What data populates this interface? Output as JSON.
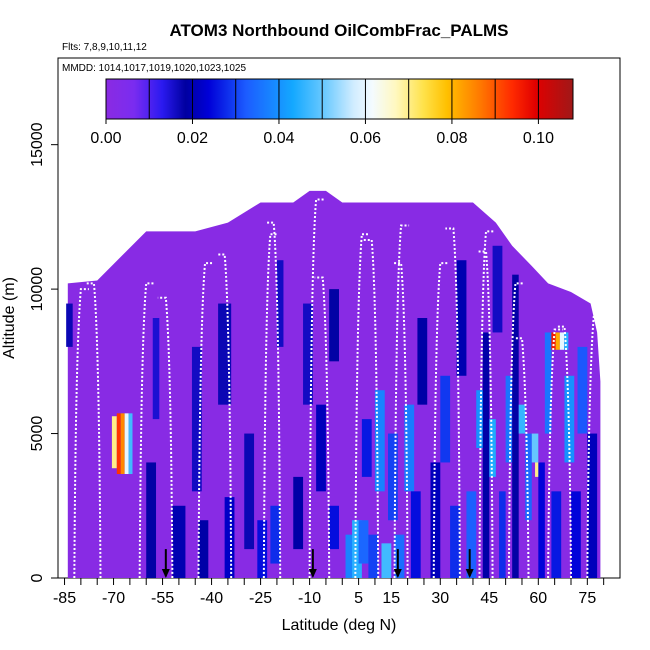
{
  "chart_data": {
    "type": "heatmap",
    "title": "ATOM3 Northbound OilCombFrac_PALMS",
    "flights_text": "Flts: 7,8,9,10,11,12",
    "dates_text": "MMDD: 1014,1017,1019,1020,1023,1025",
    "xlabel": "Latitude (deg N)",
    "ylabel": "Altitude (m)",
    "xlim": [
      -87,
      85
    ],
    "ylim": [
      0,
      18000
    ],
    "x_ticks": [
      -85,
      -70,
      -55,
      -40,
      -25,
      -10,
      5,
      15,
      30,
      45,
      60,
      75
    ],
    "x_tick_labels": [
      "-85",
      "-70",
      "-55",
      "-40",
      "-25",
      "-10",
      "5",
      "15",
      "30",
      "45",
      "60",
      "75"
    ],
    "x_minor_ticks": [
      -80,
      -75,
      -65,
      -60,
      -50,
      -45,
      -35,
      -30,
      -20,
      -15,
      -5,
      0,
      10,
      20,
      25,
      35,
      40,
      50,
      55,
      65,
      70,
      80
    ],
    "y_ticks": [
      0,
      5000,
      10000,
      15000
    ],
    "y_tick_labels": [
      "0",
      "5000",
      "10000",
      "15000"
    ],
    "colorbar": {
      "min": 0,
      "max": 0.108,
      "ticks": [
        0.0,
        0.02,
        0.04,
        0.06,
        0.08,
        0.1
      ],
      "tick_labels": [
        "0.00",
        "0.02",
        "0.04",
        "0.06",
        "0.08",
        "0.10"
      ],
      "divisions": [
        0.01,
        0.02,
        0.03,
        0.04,
        0.05,
        0.06,
        0.07,
        0.08,
        0.09,
        0.1
      ],
      "color_stops": [
        [
          "0.0",
          "#8a2be2"
        ],
        [
          "0.06",
          "#7a2cf0"
        ],
        [
          "0.12",
          "#2b1af0"
        ],
        [
          "0.17",
          "#0000a0"
        ],
        [
          "0.22",
          "#0000d8"
        ],
        [
          "0.30",
          "#1c5cff"
        ],
        [
          "0.40",
          "#14a8ff"
        ],
        [
          "0.47",
          "#6ecbff"
        ],
        [
          "0.53",
          "#d0ecff"
        ],
        [
          "0.57",
          "#f4fbff"
        ],
        [
          "0.62",
          "#fff8c0"
        ],
        [
          "0.68",
          "#ffe24a"
        ],
        [
          "0.73",
          "#ffc000"
        ],
        [
          "0.80",
          "#ff7a00"
        ],
        [
          "0.87",
          "#ff2a00"
        ],
        [
          "0.92",
          "#e00000"
        ],
        [
          "1.0",
          "#a01818"
        ]
      ]
    },
    "envelope": [
      [
        -84,
        10200
      ],
      [
        -75,
        10300
      ],
      [
        -60,
        12000
      ],
      [
        -45,
        12000
      ],
      [
        -35,
        12300
      ],
      [
        -25,
        13000
      ],
      [
        -15,
        13000
      ],
      [
        -10,
        13400
      ],
      [
        -5,
        13400
      ],
      [
        0,
        13000
      ],
      [
        40,
        13000
      ],
      [
        47,
        12300
      ],
      [
        52,
        11500
      ],
      [
        58,
        10800
      ],
      [
        63,
        10200
      ],
      [
        70,
        9900
      ],
      [
        76,
        9500
      ],
      [
        78,
        8500
      ],
      [
        79,
        6800
      ],
      [
        79,
        0
      ]
    ],
    "background_value": 0.001,
    "cells": [
      {
        "x": -84.5,
        "w": 2,
        "y0": 8000,
        "y1": 9500,
        "v": 0.017
      },
      {
        "x": -70.5,
        "w": 1.5,
        "y0": 3800,
        "y1": 5600,
        "v": 0.07
      },
      {
        "x": -69.0,
        "w": 1.2,
        "y0": 3600,
        "y1": 5700,
        "v": 0.093
      },
      {
        "x": -67.8,
        "w": 1.2,
        "y0": 3600,
        "y1": 5700,
        "v": 0.085
      },
      {
        "x": -66.6,
        "w": 1.2,
        "y0": 3600,
        "y1": 5700,
        "v": 0.06
      },
      {
        "x": -65.4,
        "w": 1.2,
        "y0": 3600,
        "y1": 5700,
        "v": 0.047
      },
      {
        "x": -60,
        "w": 3,
        "y0": 0,
        "y1": 4000,
        "v": 0.018
      },
      {
        "x": -58,
        "w": 2,
        "y0": 5500,
        "y1": 9000,
        "v": 0.015
      },
      {
        "x": -52,
        "w": 4,
        "y0": 0,
        "y1": 2500,
        "v": 0.02
      },
      {
        "x": -46,
        "w": 3,
        "y0": 3000,
        "y1": 8000,
        "v": 0.016
      },
      {
        "x": -44,
        "w": 3,
        "y0": 0,
        "y1": 2000,
        "v": 0.019
      },
      {
        "x": -38,
        "w": 4,
        "y0": 6000,
        "y1": 9500,
        "v": 0.017
      },
      {
        "x": -36,
        "w": 3,
        "y0": 0,
        "y1": 2800,
        "v": 0.022
      },
      {
        "x": -30,
        "w": 3,
        "y0": 1000,
        "y1": 5000,
        "v": 0.017
      },
      {
        "x": -26,
        "w": 3,
        "y0": 0,
        "y1": 2000,
        "v": 0.025
      },
      {
        "x": -22,
        "w": 3,
        "y0": 500,
        "y1": 2500,
        "v": 0.028
      },
      {
        "x": -20,
        "w": 2,
        "y0": 8000,
        "y1": 11000,
        "v": 0.016
      },
      {
        "x": -15,
        "w": 3,
        "y0": 1000,
        "y1": 3500,
        "v": 0.019
      },
      {
        "x": -12,
        "w": 3,
        "y0": 6000,
        "y1": 9500,
        "v": 0.016
      },
      {
        "x": -8,
        "w": 3,
        "y0": 3000,
        "y1": 6000,
        "v": 0.021
      },
      {
        "x": -4,
        "w": 3,
        "y0": 1000,
        "y1": 2500,
        "v": 0.025
      },
      {
        "x": -4,
        "w": 3,
        "y0": 7500,
        "y1": 10000,
        "v": 0.018
      },
      {
        "x": 1,
        "w": 3,
        "y0": 0,
        "y1": 1500,
        "v": 0.038
      },
      {
        "x": 3,
        "w": 3,
        "y0": 0,
        "y1": 2000,
        "v": 0.045
      },
      {
        "x": 5,
        "w": 3,
        "y0": 500,
        "y1": 2000,
        "v": 0.034
      },
      {
        "x": 6,
        "w": 3,
        "y0": 3500,
        "y1": 5500,
        "v": 0.026
      },
      {
        "x": 8,
        "w": 3,
        "y0": 0,
        "y1": 1500,
        "v": 0.03
      },
      {
        "x": 10,
        "w": 3,
        "y0": 3000,
        "y1": 6500,
        "v": 0.038
      },
      {
        "x": 12,
        "w": 3,
        "y0": 0,
        "y1": 1200,
        "v": 0.047
      },
      {
        "x": 14,
        "w": 3,
        "y0": 2000,
        "y1": 5000,
        "v": 0.03
      },
      {
        "x": 16,
        "w": 3,
        "y0": 0,
        "y1": 1500,
        "v": 0.035
      },
      {
        "x": 19,
        "w": 3,
        "y0": 3000,
        "y1": 6000,
        "v": 0.037
      },
      {
        "x": 21,
        "w": 3,
        "y0": 0,
        "y1": 3000,
        "v": 0.025
      },
      {
        "x": 23,
        "w": 3,
        "y0": 6000,
        "y1": 9000,
        "v": 0.019
      },
      {
        "x": 27,
        "w": 3,
        "y0": 0,
        "y1": 4000,
        "v": 0.021
      },
      {
        "x": 30,
        "w": 3,
        "y0": 4000,
        "y1": 7000,
        "v": 0.029
      },
      {
        "x": 33,
        "w": 3,
        "y0": 0,
        "y1": 2500,
        "v": 0.028
      },
      {
        "x": 35,
        "w": 3,
        "y0": 7000,
        "y1": 11000,
        "v": 0.02
      },
      {
        "x": 38,
        "w": 3,
        "y0": 0,
        "y1": 3000,
        "v": 0.033
      },
      {
        "x": 41,
        "w": 3,
        "y0": 4500,
        "y1": 6500,
        "v": 0.04
      },
      {
        "x": 43,
        "w": 2,
        "y0": 0,
        "y1": 8500,
        "v": 0.019
      },
      {
        "x": 45,
        "w": 2,
        "y0": 3500,
        "y1": 5500,
        "v": 0.044
      },
      {
        "x": 46,
        "w": 3,
        "y0": 8500,
        "y1": 11500,
        "v": 0.016
      },
      {
        "x": 48,
        "w": 2,
        "y0": 0,
        "y1": 3000,
        "v": 0.028
      },
      {
        "x": 50,
        "w": 2,
        "y0": 4000,
        "y1": 7000,
        "v": 0.036
      },
      {
        "x": 52,
        "w": 2,
        "y0": 0,
        "y1": 10500,
        "v": 0.018
      },
      {
        "x": 54,
        "w": 2,
        "y0": 5000,
        "y1": 6000,
        "v": 0.046
      },
      {
        "x": 56,
        "w": 2,
        "y0": 2000,
        "y1": 5000,
        "v": 0.034
      },
      {
        "x": 58,
        "w": 2,
        "y0": 4000,
        "y1": 5000,
        "v": 0.05
      },
      {
        "x": 59,
        "w": 1.5,
        "y0": 3500,
        "y1": 4000,
        "v": 0.07
      },
      {
        "x": 60,
        "w": 2,
        "y0": 0,
        "y1": 4000,
        "v": 0.024
      },
      {
        "x": 62,
        "w": 2,
        "y0": 5000,
        "y1": 8500,
        "v": 0.036
      },
      {
        "x": 64,
        "w": 1.3,
        "y0": 7900,
        "y1": 8500,
        "v": 0.096
      },
      {
        "x": 65.3,
        "w": 1.3,
        "y0": 7900,
        "y1": 8500,
        "v": 0.081
      },
      {
        "x": 66.6,
        "w": 1.3,
        "y0": 7900,
        "y1": 8500,
        "v": 0.06
      },
      {
        "x": 67.9,
        "w": 1.3,
        "y0": 7900,
        "y1": 8500,
        "v": 0.045
      },
      {
        "x": 64,
        "w": 3,
        "y0": 0,
        "y1": 3000,
        "v": 0.026
      },
      {
        "x": 68,
        "w": 3,
        "y0": 4000,
        "y1": 7000,
        "v": 0.04
      },
      {
        "x": 70,
        "w": 3,
        "y0": 0,
        "y1": 3000,
        "v": 0.024
      },
      {
        "x": 72,
        "w": 3,
        "y0": 5000,
        "y1": 8000,
        "v": 0.032
      },
      {
        "x": 75,
        "w": 3,
        "y0": 0,
        "y1": 5000,
        "v": 0.021
      }
    ],
    "profiles": [
      {
        "lat": -82,
        "top": 10000,
        "dir": 1
      },
      {
        "lat": -74,
        "top": 10200,
        "dir": -1
      },
      {
        "lat": -62,
        "top": 10200,
        "dir": 1
      },
      {
        "lat": -52,
        "top": 9700,
        "dir": -1
      },
      {
        "lat": -44,
        "top": 10900,
        "dir": 1
      },
      {
        "lat": -34,
        "top": 11200,
        "dir": -1
      },
      {
        "lat": -24,
        "top": 11900,
        "dir": 1
      },
      {
        "lat": -19,
        "top": 12300,
        "dir": -1
      },
      {
        "lat": -10,
        "top": 13100,
        "dir": 1
      },
      {
        "lat": -4,
        "top": 10400,
        "dir": -1
      },
      {
        "lat": 4,
        "top": 11900,
        "dir": 1
      },
      {
        "lat": 11,
        "top": 11700,
        "dir": -1
      },
      {
        "lat": 16,
        "top": 12200,
        "dir": 1
      },
      {
        "lat": 20,
        "top": 10900,
        "dir": -1
      },
      {
        "lat": 28,
        "top": 10900,
        "dir": 1
      },
      {
        "lat": 36,
        "top": 12100,
        "dir": -1
      },
      {
        "lat": 42,
        "top": 12000,
        "dir": 1
      },
      {
        "lat": 46,
        "top": 11300,
        "dir": -1
      },
      {
        "lat": 51,
        "top": 10200,
        "dir": 1
      },
      {
        "lat": 57,
        "top": 8300,
        "dir": -1
      },
      {
        "lat": 63,
        "top": 8600,
        "dir": 1
      },
      {
        "lat": 70,
        "top": 8700,
        "dir": -1
      },
      {
        "lat": 75,
        "top": 9100,
        "dir": 1
      }
    ],
    "arrows": [
      -54,
      -9,
      17,
      39
    ]
  }
}
